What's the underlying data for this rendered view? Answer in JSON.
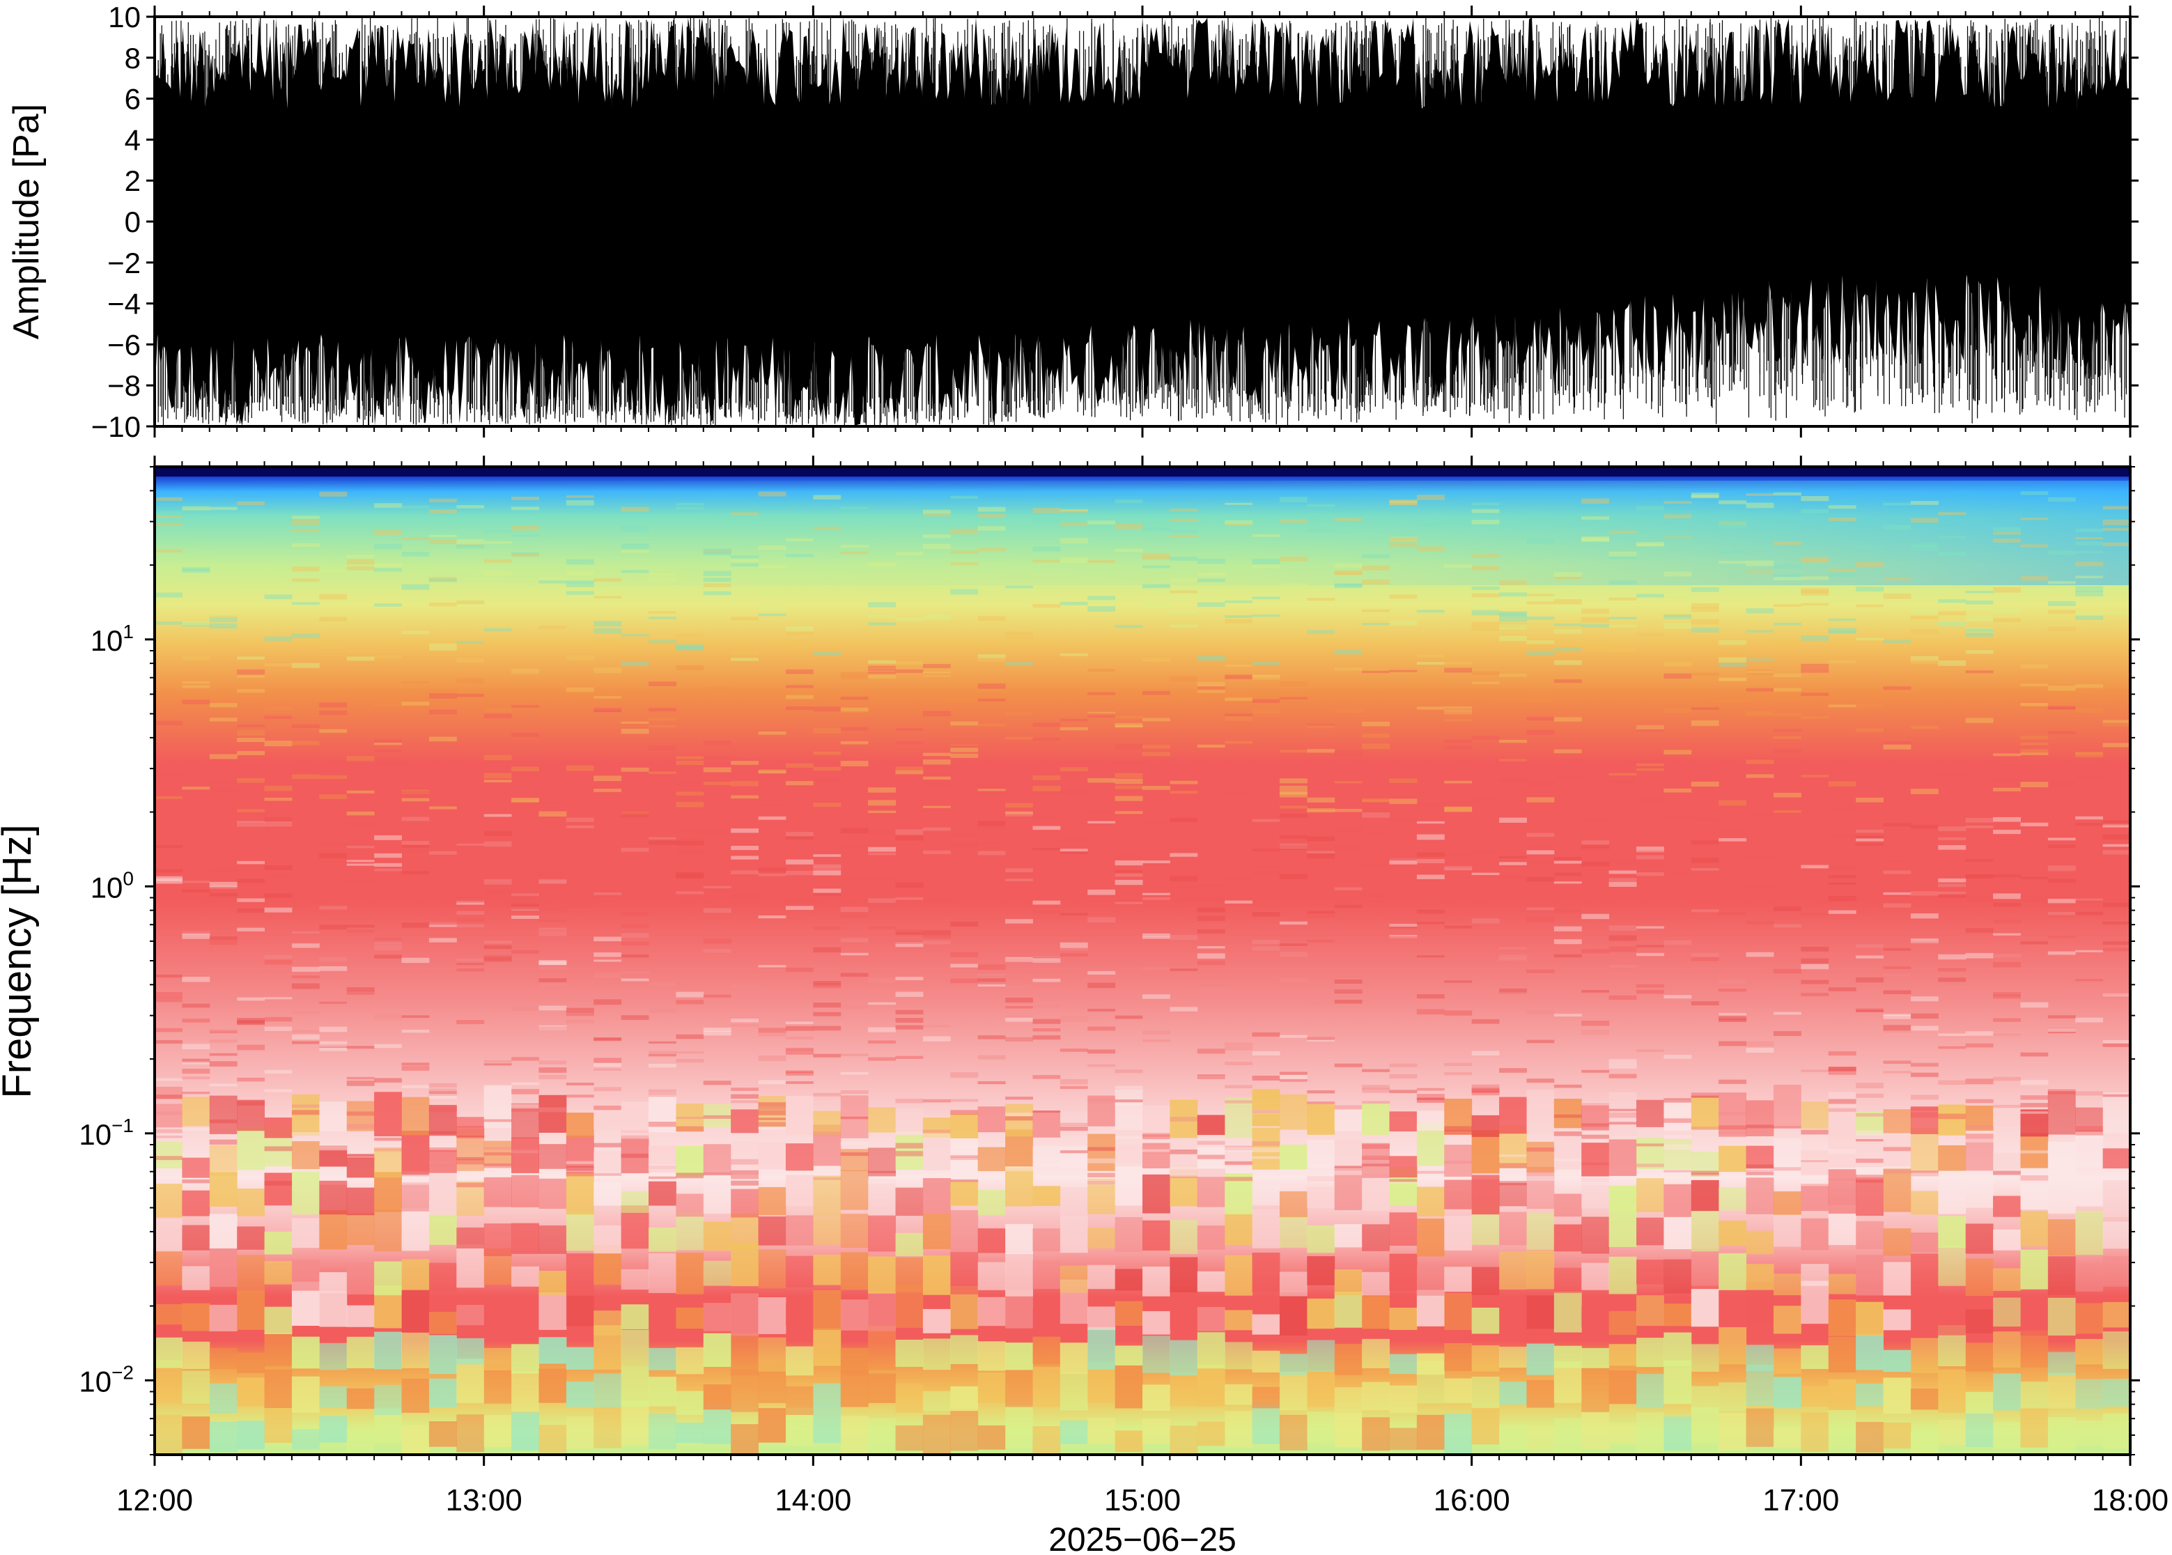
{
  "chart_data": [
    {
      "type": "line",
      "title": "",
      "ylabel": "Amplitude [Pa]",
      "ylim": [
        -10,
        10
      ],
      "yticks": [
        -10,
        -8,
        -6,
        -4,
        -2,
        0,
        2,
        4,
        6,
        8,
        10
      ],
      "ytick_labels": [
        "−10",
        "−8",
        "−6",
        "−4",
        "−2",
        "0",
        "2",
        "4",
        "6",
        "8",
        "10"
      ],
      "xlim": [
        "12:00",
        "18:00"
      ],
      "series": [
        {
          "time_hours": [
            12.0,
            12.5,
            13.0,
            13.5,
            14.0,
            14.5,
            15.0,
            15.5,
            16.0,
            16.5,
            17.0,
            17.5,
            18.0
          ],
          "upper_envelope_pa": [
            10,
            10,
            10,
            10,
            10,
            10,
            10,
            10,
            10,
            10,
            10,
            10,
            10
          ],
          "lower_envelope_pa": [
            -10,
            -10,
            -10,
            -10,
            -10,
            -10,
            -9,
            -9,
            -9,
            -8,
            -7,
            -7,
            -8
          ],
          "clipped_at_pa": 10
        }
      ],
      "color": "#000000",
      "grid": false
    },
    {
      "type": "heatmap",
      "title": "",
      "ylabel": "Frequency [Hz]",
      "yscale": "log",
      "ylim": [
        0.005,
        50
      ],
      "yticks": [
        0.01,
        0.1,
        1,
        10
      ],
      "ytick_labels": [
        {
          "base": "10",
          "exp": "−2"
        },
        {
          "base": "10",
          "exp": "−1"
        },
        {
          "base": "10",
          "exp": "0"
        },
        {
          "base": "10",
          "exp": "1"
        }
      ],
      "xlabel": "2025−06−25",
      "xlim": [
        "12:00",
        "18:00"
      ],
      "xtick_labels": [
        "12:00",
        "13:00",
        "14:00",
        "15:00",
        "16:00",
        "17:00",
        "18:00"
      ],
      "colormap": [
        "#000066",
        "#1b3fd6",
        "#3bb4ff",
        "#7ee0c2",
        "#d9f08a",
        "#f2c35e",
        "#f2904a",
        "#f25c5c",
        "#f58c8c",
        "#fce6e6"
      ],
      "time_hours": [
        12.0,
        12.5,
        13.0,
        13.5,
        14.0,
        14.5,
        15.0,
        15.5,
        16.0,
        16.5,
        17.0,
        17.5,
        18.0
      ],
      "color_bands_by_frequency": [
        {
          "freq_hz": [
            45,
            50
          ],
          "color": "#0a0a70"
        },
        {
          "freq_hz": [
            25,
            45
          ],
          "color": "#7ee0c2"
        },
        {
          "freq_hz": [
            8,
            25
          ],
          "color": "#d9f08a"
        },
        {
          "freq_hz": [
            3,
            8
          ],
          "color": "#f2904a"
        },
        {
          "freq_hz": [
            0.5,
            3
          ],
          "color": "#f25c5c"
        },
        {
          "freq_hz": [
            0.2,
            0.5
          ],
          "color": "#f58c8c"
        },
        {
          "freq_hz": [
            0.04,
            0.2
          ],
          "color": "#fce6e6"
        },
        {
          "freq_hz": [
            0.015,
            0.04
          ],
          "color": "#f25c5c"
        },
        {
          "freq_hz": [
            0.005,
            0.015
          ],
          "color": "#d9f08a"
        }
      ],
      "grid": false
    }
  ]
}
